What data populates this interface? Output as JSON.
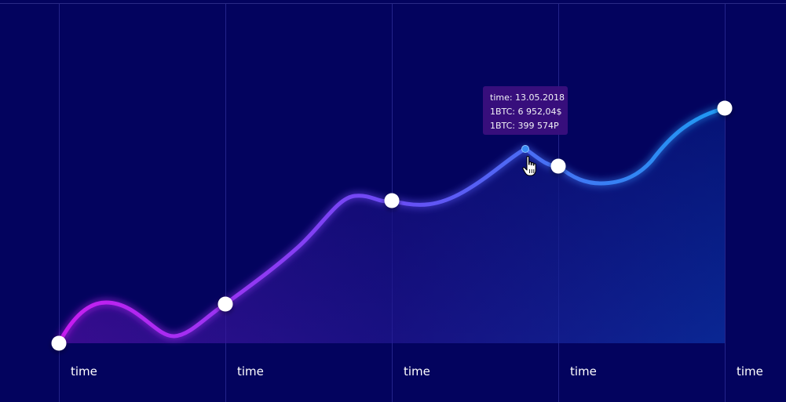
{
  "chart_data": {
    "type": "line",
    "categories": [
      "time",
      "time",
      "time",
      "time",
      "time"
    ],
    "values": [
      0,
      25,
      91,
      113,
      150
    ],
    "ylim": [
      0,
      160
    ],
    "grid": true,
    "hover_point": {
      "y": 124,
      "tooltip": {
        "time": "time: 13.05.2018",
        "btc_usd": "1BTC: 6 952,04$",
        "btc_rub": "1BTC: 399 574P"
      }
    }
  },
  "colors": {
    "background": "#03035e",
    "line_start": "#c81df0",
    "line_mid": "#6a4cf5",
    "line_end": "#1e9bf3",
    "marker": "#ffffff",
    "tooltip_bg": "#3a0f7e"
  },
  "icons": {
    "cursor": "hand-pointer-icon"
  }
}
